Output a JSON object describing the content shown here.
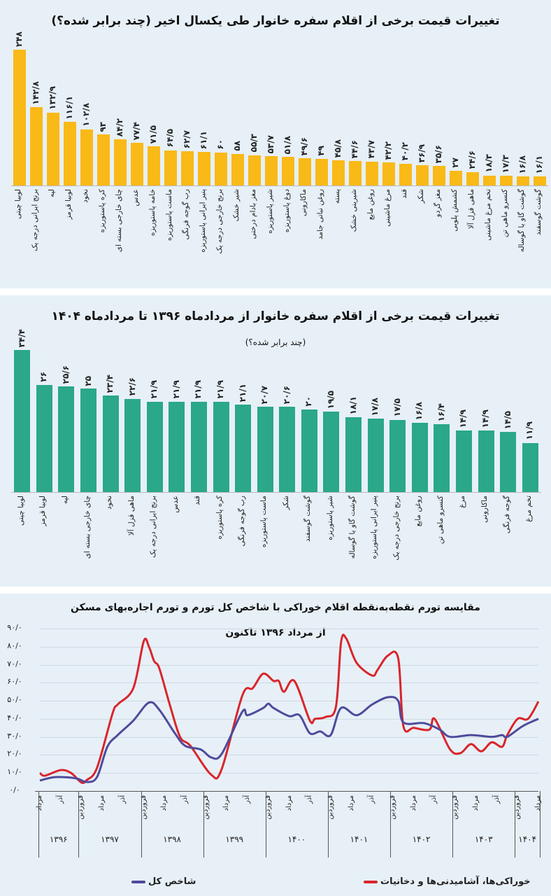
{
  "chart_data": [
    {
      "type": "bar",
      "title": "تغییرات قیمت برخی از اقلام سفره خانوار طی یکسال اخیر (چند برابر شده؟)",
      "color": "#f9b917",
      "categories": [
        "لوبیا چیتی",
        "برنج ایرانی درجه یک",
        "لپه",
        "لوبیا قرمز",
        "نخود",
        "کره پاستوریزه",
        "چای خارجی بسته ای",
        "عدس",
        "خامه پاستوریزه",
        "ماست پاستوریزه",
        "رب گوجه فرنگی",
        "پنیر ایرانی پاستوریزه",
        "برنج خارجی درجه یک",
        "شیر خشک",
        "مغز بادام درختی",
        "شیر پاستوریزه",
        "دوغ پاستوریزه",
        "ماکارونی",
        "روغن نباتی جامد",
        "پسته",
        "شیرینی خشک",
        "روغن مایع",
        "مرغ ماشینی",
        "قند",
        "شکر",
        "مغز گردو",
        "کشمش پلویی",
        "ماهی قزل آلا",
        "تخم مرغ ماشینی",
        "کنسرو ماهی تن",
        "گوشت گاو یا گوساله",
        "گوشت گوسفند"
      ],
      "values": [
        248,
        142.8,
        132.9,
        116.1,
        102.8,
        93,
        84.2,
        77.4,
        71.5,
        64.5,
        62.7,
        61.1,
        60,
        58,
        55.3,
        53.7,
        51.8,
        49.6,
        49,
        45.8,
        44.6,
        43.7,
        42.2,
        40.2,
        36.9,
        35.6,
        27,
        24.6,
        18.3,
        17.3,
        16.8,
        16.1
      ],
      "value_labels": [
        "۲۴۸",
        "۱۴۲/۸",
        "۱۳۲/۹",
        "۱۱۶/۱",
        "۱۰۲/۸",
        "۹۳",
        "۸۴/۲",
        "۷۷/۴",
        "۷۱/۵",
        "۶۴/۵",
        "۶۲/۷",
        "۶۱/۱",
        "۶۰",
        "۵۸",
        "۵۵/۳",
        "۵۳/۷",
        "۵۱/۸",
        "۴۹/۶",
        "۴۹",
        "۴۵/۸",
        "۴۴/۶",
        "۴۳/۷",
        "۴۲/۲",
        "۴۰/۲",
        "۳۶/۹",
        "۳۵/۶",
        "۲۷",
        "۲۴/۶",
        "۱۸/۳",
        "۱۷/۳",
        "۱۶/۸",
        "۱۶/۱"
      ]
    },
    {
      "type": "bar",
      "title": "تغییرات قیمت برخی از اقلام سفره خانوار از مردادماه ۱۳۹۶ تا مردادماه ۱۴۰۴",
      "subtitle": "(چند برابر شده؟)",
      "color": "#2aa889",
      "categories": [
        "لوبیا چیتی",
        "لوبیا قرمز",
        "لپه",
        "چای خارجی بسته ای",
        "نخود",
        "ماهی قزل آلا",
        "برنج ایرانی درجه یک",
        "عدس",
        "قند",
        "کره پاستوریزه",
        "رب گوجه فرنگی",
        "ماست پاستوریزه",
        "شکر",
        "گوشت گوسفند",
        "شیر پاستوریزه",
        "گوشت گاو یا گوساله",
        "پنیر ایرانی پاستوریزه",
        "برنج خارجی درجه یک",
        "روغن مایع",
        "کنسرو ماهی تن",
        "مرغ",
        "ماکارونی",
        "گوجه فرنگی",
        "تخم مرغ"
      ],
      "values": [
        34.4,
        26,
        25.6,
        25,
        23.4,
        22.6,
        21.9,
        21.9,
        21.9,
        21.9,
        21.1,
        20.7,
        20.6,
        20,
        19.5,
        18.1,
        17.8,
        17.5,
        16.8,
        16.4,
        14.9,
        14.9,
        14.5,
        11.9
      ],
      "value_labels": [
        "۳۴/۴",
        "۲۶",
        "۲۵/۶",
        "۲۵",
        "۲۳/۴",
        "۲۲/۶",
        "۲۱/۹",
        "۲۱/۹",
        "۲۱/۹",
        "۲۱/۹",
        "۲۱/۱",
        "۲۰/۷",
        "۲۰/۶",
        "۲۰",
        "۱۹/۵",
        "۱۸/۱",
        "۱۷/۸",
        "۱۷/۵",
        "۱۶/۸",
        "۱۶/۴",
        "۱۴/۹",
        "۱۴/۹",
        "۱۴/۵",
        "۱۱/۹"
      ]
    },
    {
      "type": "line",
      "title": "مقایسه تورم نقطه‌به‌نقطه اقلام خوراکی با شاخص کل تورم و تورم اجاره‌بهای مسکن",
      "subtitle": "از مرداد ۱۳۹۶ تاکنون",
      "ylim": [
        0,
        90
      ],
      "grid": true,
      "y_tick_labels": [
        "۰/۰",
        "۱۰/۰",
        "۲۰/۰",
        "۳۰/۰",
        "۴۰/۰",
        "۵۰/۰",
        "۶۰/۰",
        "۷۰/۰",
        "۸۰/۰",
        "۹۰/۰"
      ],
      "x_range": [
        "1396-05",
        "1404-05"
      ],
      "x_month_ticks": [
        {
          "date": "1396-05",
          "label": "مرداد"
        },
        {
          "date": "1396-09",
          "label": "آذر"
        },
        {
          "date": "1397-01",
          "label": "فروردین"
        },
        {
          "date": "1397-05",
          "label": "مرداد"
        },
        {
          "date": "1397-09",
          "label": "آذر"
        },
        {
          "date": "1398-01",
          "label": "فروردین"
        },
        {
          "date": "1398-05",
          "label": "مرداد"
        },
        {
          "date": "1398-09",
          "label": "آذر"
        },
        {
          "date": "1399-01",
          "label": "فروردین"
        },
        {
          "date": "1399-05",
          "label": "مرداد"
        },
        {
          "date": "1399-09",
          "label": "آذر"
        },
        {
          "date": "1400-01",
          "label": "فروردین"
        },
        {
          "date": "1400-05",
          "label": "مرداد"
        },
        {
          "date": "1400-09",
          "label": "آذر"
        },
        {
          "date": "1401-01",
          "label": "فروردین"
        },
        {
          "date": "1401-05",
          "label": "مرداد"
        },
        {
          "date": "1401-09",
          "label": "آذر"
        },
        {
          "date": "1402-01",
          "label": "فروردین"
        },
        {
          "date": "1402-05",
          "label": "مرداد"
        },
        {
          "date": "1402-09",
          "label": "آذر"
        },
        {
          "date": "1403-01",
          "label": "فروردین"
        },
        {
          "date": "1403-05",
          "label": "مرداد"
        },
        {
          "date": "1403-09",
          "label": "آذر"
        },
        {
          "date": "1404-01",
          "label": "فروردین"
        },
        {
          "date": "1404-05",
          "label": "مرداد"
        }
      ],
      "x_year_labels": [
        "۱۳۹۶",
        "۱۳۹۷",
        "۱۳۹۸",
        "۱۳۹۹",
        "۱۴۰۰",
        "۱۴۰۱",
        "۱۴۰۲",
        "۱۴۰۳",
        "۱۴۰۴"
      ],
      "legend_position": "bottom",
      "series": [
        {
          "name": "خوراکی‌ها، آشامیدنی‌ها و دخانیات",
          "color": "#d9252b",
          "points": [
            [
              "1396-05",
              10
            ],
            [
              "1396-06",
              8.5
            ],
            [
              "1396-09",
              11.6
            ],
            [
              "1396-11",
              10
            ],
            [
              "1397-01",
              4.7
            ],
            [
              "1397-02",
              6
            ],
            [
              "1397-04",
              12.8
            ],
            [
              "1397-07",
              43
            ],
            [
              "1397-08",
              48
            ],
            [
              "1397-11",
              57
            ],
            [
              "1398-01",
              83
            ],
            [
              "1398-02",
              80
            ],
            [
              "1398-03",
              72
            ],
            [
              "1398-04",
              68
            ],
            [
              "1398-06",
              48
            ],
            [
              "1398-08",
              30
            ],
            [
              "1398-10",
              25
            ],
            [
              "1399-02",
              9
            ],
            [
              "1399-04",
              12
            ],
            [
              "1399-08",
              53
            ],
            [
              "1399-10",
              57
            ],
            [
              "1399-12",
              65
            ],
            [
              "1400-02",
              61
            ],
            [
              "1400-03",
              61
            ],
            [
              "1400-04",
              55
            ],
            [
              "1400-06",
              61
            ],
            [
              "1400-09",
              39
            ],
            [
              "1400-10",
              40
            ],
            [
              "1400-12",
              41
            ],
            [
              "1401-02",
              46.5
            ],
            [
              "1401-03",
              82.5
            ],
            [
              "1401-04",
              84.5
            ],
            [
              "1401-06",
              71
            ],
            [
              "1401-09",
              64
            ],
            [
              "1401-10",
              67
            ],
            [
              "1401-12",
              75
            ],
            [
              "1402-02",
              73.6
            ],
            [
              "1402-03",
              36
            ],
            [
              "1402-05",
              35
            ],
            [
              "1402-08",
              34
            ],
            [
              "1402-09",
              40
            ],
            [
              "1402-12",
              23
            ],
            [
              "1403-02",
              21
            ],
            [
              "1403-04",
              26
            ],
            [
              "1403-06",
              22
            ],
            [
              "1403-08",
              27
            ],
            [
              "1403-10",
              24.5
            ],
            [
              "1403-11",
              31
            ],
            [
              "1404-01",
              40
            ],
            [
              "1404-03",
              40
            ],
            [
              "1404-05",
              49.6
            ]
          ]
        },
        {
          "name": "شاخص کل",
          "color": "#4e4b9c",
          "points": [
            [
              "1396-05",
              5.8
            ],
            [
              "1396-08",
              7.7
            ],
            [
              "1396-12",
              7
            ],
            [
              "1397-02",
              5
            ],
            [
              "1397-04",
              7.7
            ],
            [
              "1397-06",
              24.5
            ],
            [
              "1397-08",
              31
            ],
            [
              "1397-11",
              39
            ],
            [
              "1398-02",
              49
            ],
            [
              "1398-04",
              45
            ],
            [
              "1398-07",
              32
            ],
            [
              "1398-09",
              25
            ],
            [
              "1398-12",
              23
            ],
            [
              "1399-02",
              18.6
            ],
            [
              "1399-04",
              20.5
            ],
            [
              "1399-08",
              44
            ],
            [
              "1399-09",
              42
            ],
            [
              "1399-12",
              46
            ],
            [
              "1400-01",
              48.4
            ],
            [
              "1400-02",
              46
            ],
            [
              "1400-05",
              41.5
            ],
            [
              "1400-07",
              42
            ],
            [
              "1400-09",
              32
            ],
            [
              "1400-11",
              33
            ],
            [
              "1401-01",
              31
            ],
            [
              "1401-03",
              46
            ],
            [
              "1401-06",
              42
            ],
            [
              "1401-09",
              48
            ],
            [
              "1401-12",
              52
            ],
            [
              "1402-02",
              50
            ],
            [
              "1402-03",
              38
            ],
            [
              "1402-07",
              37.6
            ],
            [
              "1402-10",
              34
            ],
            [
              "1402-12",
              30
            ],
            [
              "1403-04",
              31
            ],
            [
              "1403-08",
              30
            ],
            [
              "1403-10",
              31
            ],
            [
              "1403-11",
              30
            ],
            [
              "1404-02",
              36
            ],
            [
              "1404-05",
              40
            ]
          ]
        }
      ]
    }
  ]
}
